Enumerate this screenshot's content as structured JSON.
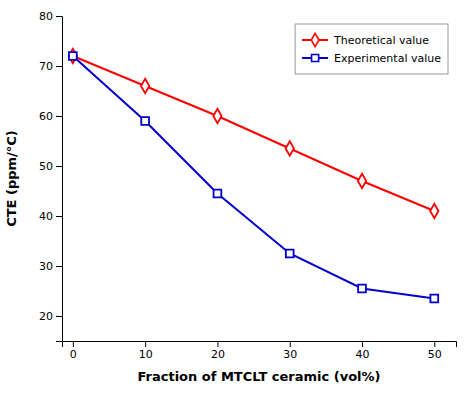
{
  "chart_data": {
    "type": "line",
    "x": [
      0,
      10,
      20,
      30,
      40,
      50
    ],
    "series": [
      {
        "name": "Theoretical value",
        "color": "#FF0000",
        "marker": "diamond",
        "values": [
          72,
          66,
          60,
          53.5,
          47,
          41
        ]
      },
      {
        "name": "Experimental value",
        "color": "#0000CC",
        "marker": "square",
        "values": [
          72,
          59,
          44.5,
          32.5,
          25.5,
          23.5
        ]
      }
    ],
    "xlabel": "Fraction of MTCLT ceramic (vol%)",
    "ylabel": "CTE (ppm/°C)",
    "xlim": [
      -1.5,
      53
    ],
    "ylim": [
      15,
      80
    ],
    "xticks": [
      0,
      10,
      20,
      30,
      40,
      50
    ],
    "yticks": [
      20,
      30,
      40,
      50,
      60,
      70,
      80
    ],
    "legend": "upper right"
  }
}
